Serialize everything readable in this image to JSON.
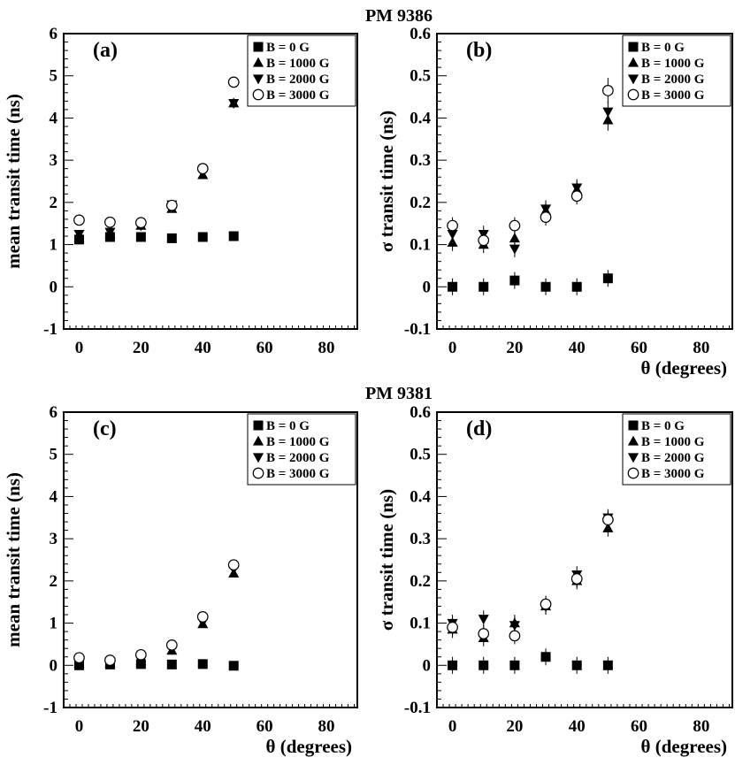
{
  "figure_titles": [
    "PM 9386",
    "PM 9381"
  ],
  "legend_entries": [
    {
      "label": "B = 0 G",
      "marker": "square"
    },
    {
      "label": "B = 1000 G",
      "marker": "triangle-up"
    },
    {
      "label": "B = 2000 G",
      "marker": "triangle-down"
    },
    {
      "label": "B = 3000 G",
      "marker": "circle-open"
    }
  ],
  "chart_data": [
    {
      "type": "scatter",
      "panel": "(a)",
      "group_title": "PM 9386",
      "title": "",
      "xlabel": "",
      "ylabel": "mean transit time (ns)",
      "xlim": [
        -5,
        90
      ],
      "ylim": [
        -1,
        6
      ],
      "xticks": [
        0,
        20,
        40,
        60,
        80
      ],
      "yticks": [
        -1,
        0,
        1,
        2,
        3,
        4,
        5,
        6
      ],
      "ytick_labels": [
        "-1",
        "0",
        "1",
        "2",
        "3",
        "4",
        "5",
        "6"
      ],
      "legend": "top-right",
      "x": [
        0,
        10,
        20,
        30,
        40,
        50
      ],
      "series": [
        {
          "name": "B = 0 G",
          "values": [
            1.12,
            1.18,
            1.18,
            1.15,
            1.18,
            1.2
          ],
          "errors": [
            0,
            0,
            0,
            0,
            0,
            0
          ]
        },
        {
          "name": "B = 1000 G",
          "values": [
            1.15,
            1.25,
            1.45,
            1.85,
            2.65,
            4.35
          ],
          "errors": [
            0,
            0,
            0,
            0,
            0,
            0
          ]
        },
        {
          "name": "B = 2000 G",
          "values": [
            1.25,
            1.3,
            1.45,
            1.95,
            2.75,
            4.35
          ],
          "errors": [
            0,
            0,
            0,
            0,
            0,
            0
          ]
        },
        {
          "name": "B = 3000 G",
          "values": [
            1.58,
            1.53,
            1.52,
            1.93,
            2.8,
            4.85
          ],
          "errors": [
            0,
            0,
            0,
            0,
            0,
            0
          ]
        }
      ]
    },
    {
      "type": "scatter",
      "panel": "(b)",
      "group_title": "PM 9386",
      "title": "",
      "xlabel": "θ (degrees)",
      "ylabel": "σ transit time (ns)",
      "xlim": [
        -5,
        90
      ],
      "ylim": [
        -0.1,
        0.6
      ],
      "xticks": [
        0,
        20,
        40,
        60,
        80
      ],
      "yticks": [
        -0.1,
        0,
        0.1,
        0.2,
        0.3,
        0.4,
        0.5,
        0.6
      ],
      "ytick_labels": [
        "-0.1",
        "0",
        "0.1",
        "0.2",
        "0.3",
        "0.4",
        "0.5",
        "0.6"
      ],
      "legend": "top-right",
      "x": [
        0,
        10,
        20,
        30,
        40,
        50
      ],
      "series": [
        {
          "name": "B = 0 G",
          "values": [
            0.0,
            0.0,
            0.015,
            0.0,
            0.0,
            0.02
          ],
          "errors": [
            0.02,
            0.02,
            0.02,
            0.02,
            0.02,
            0.02
          ]
        },
        {
          "name": "B = 1000 G",
          "values": [
            0.105,
            0.1,
            0.115,
            0.18,
            0.23,
            0.395
          ],
          "errors": [
            0.02,
            0.02,
            0.02,
            0.02,
            0.02,
            0.025
          ]
        },
        {
          "name": "B = 2000 G",
          "values": [
            0.125,
            0.125,
            0.09,
            0.185,
            0.235,
            0.415
          ],
          "errors": [
            0.02,
            0.02,
            0.02,
            0.02,
            0.02,
            0.025
          ]
        },
        {
          "name": "B = 3000 G",
          "values": [
            0.145,
            0.11,
            0.145,
            0.165,
            0.215,
            0.465
          ],
          "errors": [
            0.02,
            0.02,
            0.02,
            0.02,
            0.02,
            0.03
          ]
        }
      ]
    },
    {
      "type": "scatter",
      "panel": "(c)",
      "group_title": "PM 9381",
      "title": "",
      "xlabel": "θ (degrees)",
      "ylabel": "mean transit time (ns)",
      "xlim": [
        -5,
        90
      ],
      "ylim": [
        -1,
        6
      ],
      "xticks": [
        0,
        20,
        40,
        60,
        80
      ],
      "yticks": [
        -1,
        0,
        1,
        2,
        3,
        4,
        5,
        6
      ],
      "ytick_labels": [
        "-1",
        "0",
        "1",
        "2",
        "3",
        "4",
        "5",
        "6"
      ],
      "legend": "top-right",
      "x": [
        0,
        10,
        20,
        30,
        40,
        50
      ],
      "series": [
        {
          "name": "B = 0 G",
          "values": [
            0.0,
            0.02,
            0.03,
            0.02,
            0.03,
            -0.01
          ],
          "errors": [
            0,
            0,
            0,
            0,
            0,
            0
          ]
        },
        {
          "name": "B = 1000 G",
          "values": [
            0.05,
            0.05,
            0.1,
            0.35,
            0.98,
            2.18
          ],
          "errors": [
            0,
            0,
            0,
            0,
            0,
            0
          ]
        },
        {
          "name": "B = 2000 G",
          "values": [
            0.08,
            0.08,
            0.12,
            0.38,
            1.02,
            2.28
          ],
          "errors": [
            0,
            0,
            0,
            0,
            0,
            0
          ]
        },
        {
          "name": "B = 3000 G",
          "values": [
            0.18,
            0.12,
            0.25,
            0.48,
            1.15,
            2.38
          ],
          "errors": [
            0,
            0,
            0,
            0,
            0,
            0
          ]
        }
      ]
    },
    {
      "type": "scatter",
      "panel": "(d)",
      "group_title": "PM 9381",
      "title": "",
      "xlabel": "θ (degrees)",
      "ylabel": "σ transit time (ns)",
      "xlim": [
        -5,
        90
      ],
      "ylim": [
        -0.1,
        0.6
      ],
      "xticks": [
        0,
        20,
        40,
        60,
        80
      ],
      "yticks": [
        -0.1,
        0,
        0.1,
        0.2,
        0.3,
        0.4,
        0.5,
        0.6
      ],
      "ytick_labels": [
        "-0.1",
        "0",
        "0.1",
        "0.2",
        "0.3",
        "0.4",
        "0.5",
        "0.6"
      ],
      "legend": "top-right",
      "x": [
        0,
        10,
        20,
        30,
        40,
        50
      ],
      "series": [
        {
          "name": "B = 0 G",
          "values": [
            0.0,
            0.0,
            0.0,
            0.02,
            0.0,
            0.0
          ],
          "errors": [
            0.02,
            0.02,
            0.02,
            0.02,
            0.02,
            0.02
          ]
        },
        {
          "name": "B = 1000 G",
          "values": [
            0.085,
            0.065,
            0.1,
            0.14,
            0.2,
            0.325
          ],
          "errors": [
            0.02,
            0.02,
            0.02,
            0.02,
            0.02,
            0.02
          ]
        },
        {
          "name": "B = 2000 G",
          "values": [
            0.1,
            0.11,
            0.095,
            0.14,
            0.215,
            0.35
          ],
          "errors": [
            0.02,
            0.02,
            0.02,
            0.02,
            0.02,
            0.02
          ]
        },
        {
          "name": "B = 3000 G",
          "values": [
            0.09,
            0.075,
            0.07,
            0.145,
            0.205,
            0.345
          ],
          "errors": [
            0.02,
            0.02,
            0.02,
            0.02,
            0.02,
            0.02
          ]
        }
      ]
    }
  ]
}
